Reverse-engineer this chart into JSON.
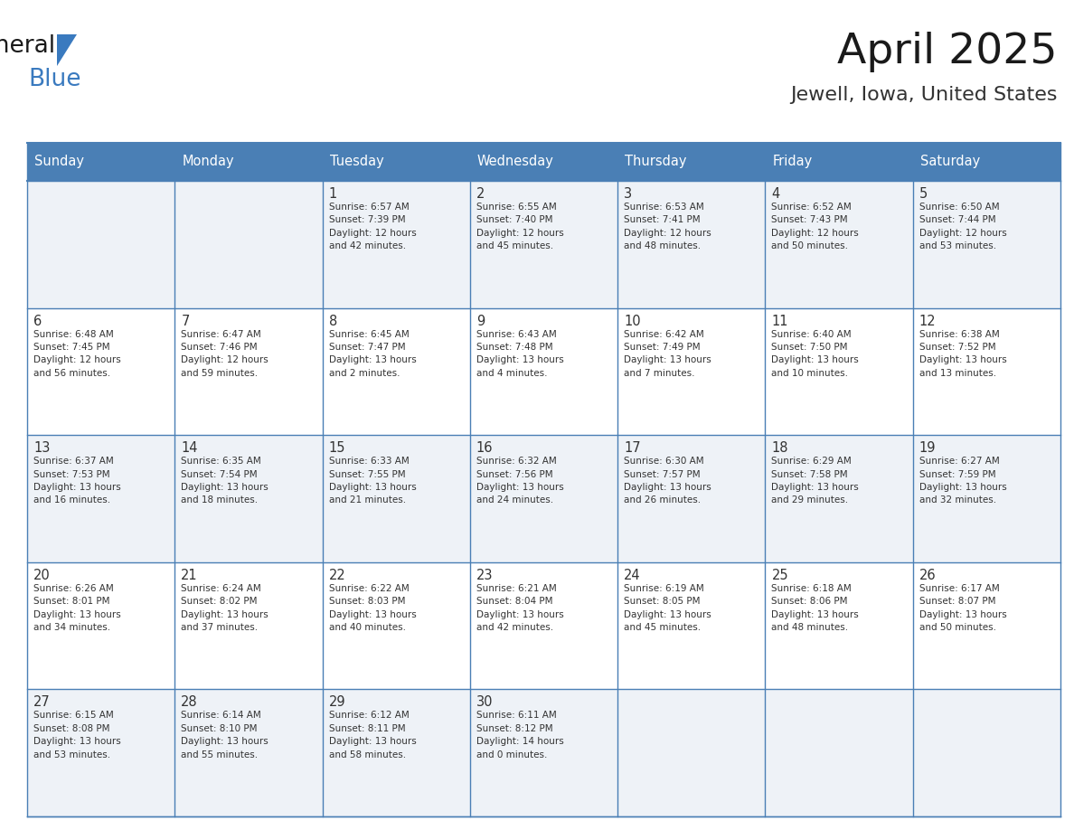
{
  "title": "April 2025",
  "subtitle": "Jewell, Iowa, United States",
  "header_bg_color": "#4a7fb5",
  "header_text_color": "#ffffff",
  "day_names": [
    "Sunday",
    "Monday",
    "Tuesday",
    "Wednesday",
    "Thursday",
    "Friday",
    "Saturday"
  ],
  "cell_bg_odd": "#eef2f7",
  "cell_bg_even": "#ffffff",
  "border_color": "#4a7fb5",
  "text_color": "#333333",
  "title_color": "#1a1a1a",
  "subtitle_color": "#333333",
  "logo_general_color": "#1a1a1a",
  "logo_blue_color": "#3a7abf",
  "fig_width": 11.88,
  "fig_height": 9.18,
  "weeks": [
    [
      {
        "day": null,
        "info": null
      },
      {
        "day": null,
        "info": null
      },
      {
        "day": 1,
        "info": "Sunrise: 6:57 AM\nSunset: 7:39 PM\nDaylight: 12 hours\nand 42 minutes."
      },
      {
        "day": 2,
        "info": "Sunrise: 6:55 AM\nSunset: 7:40 PM\nDaylight: 12 hours\nand 45 minutes."
      },
      {
        "day": 3,
        "info": "Sunrise: 6:53 AM\nSunset: 7:41 PM\nDaylight: 12 hours\nand 48 minutes."
      },
      {
        "day": 4,
        "info": "Sunrise: 6:52 AM\nSunset: 7:43 PM\nDaylight: 12 hours\nand 50 minutes."
      },
      {
        "day": 5,
        "info": "Sunrise: 6:50 AM\nSunset: 7:44 PM\nDaylight: 12 hours\nand 53 minutes."
      }
    ],
    [
      {
        "day": 6,
        "info": "Sunrise: 6:48 AM\nSunset: 7:45 PM\nDaylight: 12 hours\nand 56 minutes."
      },
      {
        "day": 7,
        "info": "Sunrise: 6:47 AM\nSunset: 7:46 PM\nDaylight: 12 hours\nand 59 minutes."
      },
      {
        "day": 8,
        "info": "Sunrise: 6:45 AM\nSunset: 7:47 PM\nDaylight: 13 hours\nand 2 minutes."
      },
      {
        "day": 9,
        "info": "Sunrise: 6:43 AM\nSunset: 7:48 PM\nDaylight: 13 hours\nand 4 minutes."
      },
      {
        "day": 10,
        "info": "Sunrise: 6:42 AM\nSunset: 7:49 PM\nDaylight: 13 hours\nand 7 minutes."
      },
      {
        "day": 11,
        "info": "Sunrise: 6:40 AM\nSunset: 7:50 PM\nDaylight: 13 hours\nand 10 minutes."
      },
      {
        "day": 12,
        "info": "Sunrise: 6:38 AM\nSunset: 7:52 PM\nDaylight: 13 hours\nand 13 minutes."
      }
    ],
    [
      {
        "day": 13,
        "info": "Sunrise: 6:37 AM\nSunset: 7:53 PM\nDaylight: 13 hours\nand 16 minutes."
      },
      {
        "day": 14,
        "info": "Sunrise: 6:35 AM\nSunset: 7:54 PM\nDaylight: 13 hours\nand 18 minutes."
      },
      {
        "day": 15,
        "info": "Sunrise: 6:33 AM\nSunset: 7:55 PM\nDaylight: 13 hours\nand 21 minutes."
      },
      {
        "day": 16,
        "info": "Sunrise: 6:32 AM\nSunset: 7:56 PM\nDaylight: 13 hours\nand 24 minutes."
      },
      {
        "day": 17,
        "info": "Sunrise: 6:30 AM\nSunset: 7:57 PM\nDaylight: 13 hours\nand 26 minutes."
      },
      {
        "day": 18,
        "info": "Sunrise: 6:29 AM\nSunset: 7:58 PM\nDaylight: 13 hours\nand 29 minutes."
      },
      {
        "day": 19,
        "info": "Sunrise: 6:27 AM\nSunset: 7:59 PM\nDaylight: 13 hours\nand 32 minutes."
      }
    ],
    [
      {
        "day": 20,
        "info": "Sunrise: 6:26 AM\nSunset: 8:01 PM\nDaylight: 13 hours\nand 34 minutes."
      },
      {
        "day": 21,
        "info": "Sunrise: 6:24 AM\nSunset: 8:02 PM\nDaylight: 13 hours\nand 37 minutes."
      },
      {
        "day": 22,
        "info": "Sunrise: 6:22 AM\nSunset: 8:03 PM\nDaylight: 13 hours\nand 40 minutes."
      },
      {
        "day": 23,
        "info": "Sunrise: 6:21 AM\nSunset: 8:04 PM\nDaylight: 13 hours\nand 42 minutes."
      },
      {
        "day": 24,
        "info": "Sunrise: 6:19 AM\nSunset: 8:05 PM\nDaylight: 13 hours\nand 45 minutes."
      },
      {
        "day": 25,
        "info": "Sunrise: 6:18 AM\nSunset: 8:06 PM\nDaylight: 13 hours\nand 48 minutes."
      },
      {
        "day": 26,
        "info": "Sunrise: 6:17 AM\nSunset: 8:07 PM\nDaylight: 13 hours\nand 50 minutes."
      }
    ],
    [
      {
        "day": 27,
        "info": "Sunrise: 6:15 AM\nSunset: 8:08 PM\nDaylight: 13 hours\nand 53 minutes."
      },
      {
        "day": 28,
        "info": "Sunrise: 6:14 AM\nSunset: 8:10 PM\nDaylight: 13 hours\nand 55 minutes."
      },
      {
        "day": 29,
        "info": "Sunrise: 6:12 AM\nSunset: 8:11 PM\nDaylight: 13 hours\nand 58 minutes."
      },
      {
        "day": 30,
        "info": "Sunrise: 6:11 AM\nSunset: 8:12 PM\nDaylight: 14 hours\nand 0 minutes."
      },
      {
        "day": null,
        "info": null
      },
      {
        "day": null,
        "info": null
      },
      {
        "day": null,
        "info": null
      }
    ]
  ]
}
